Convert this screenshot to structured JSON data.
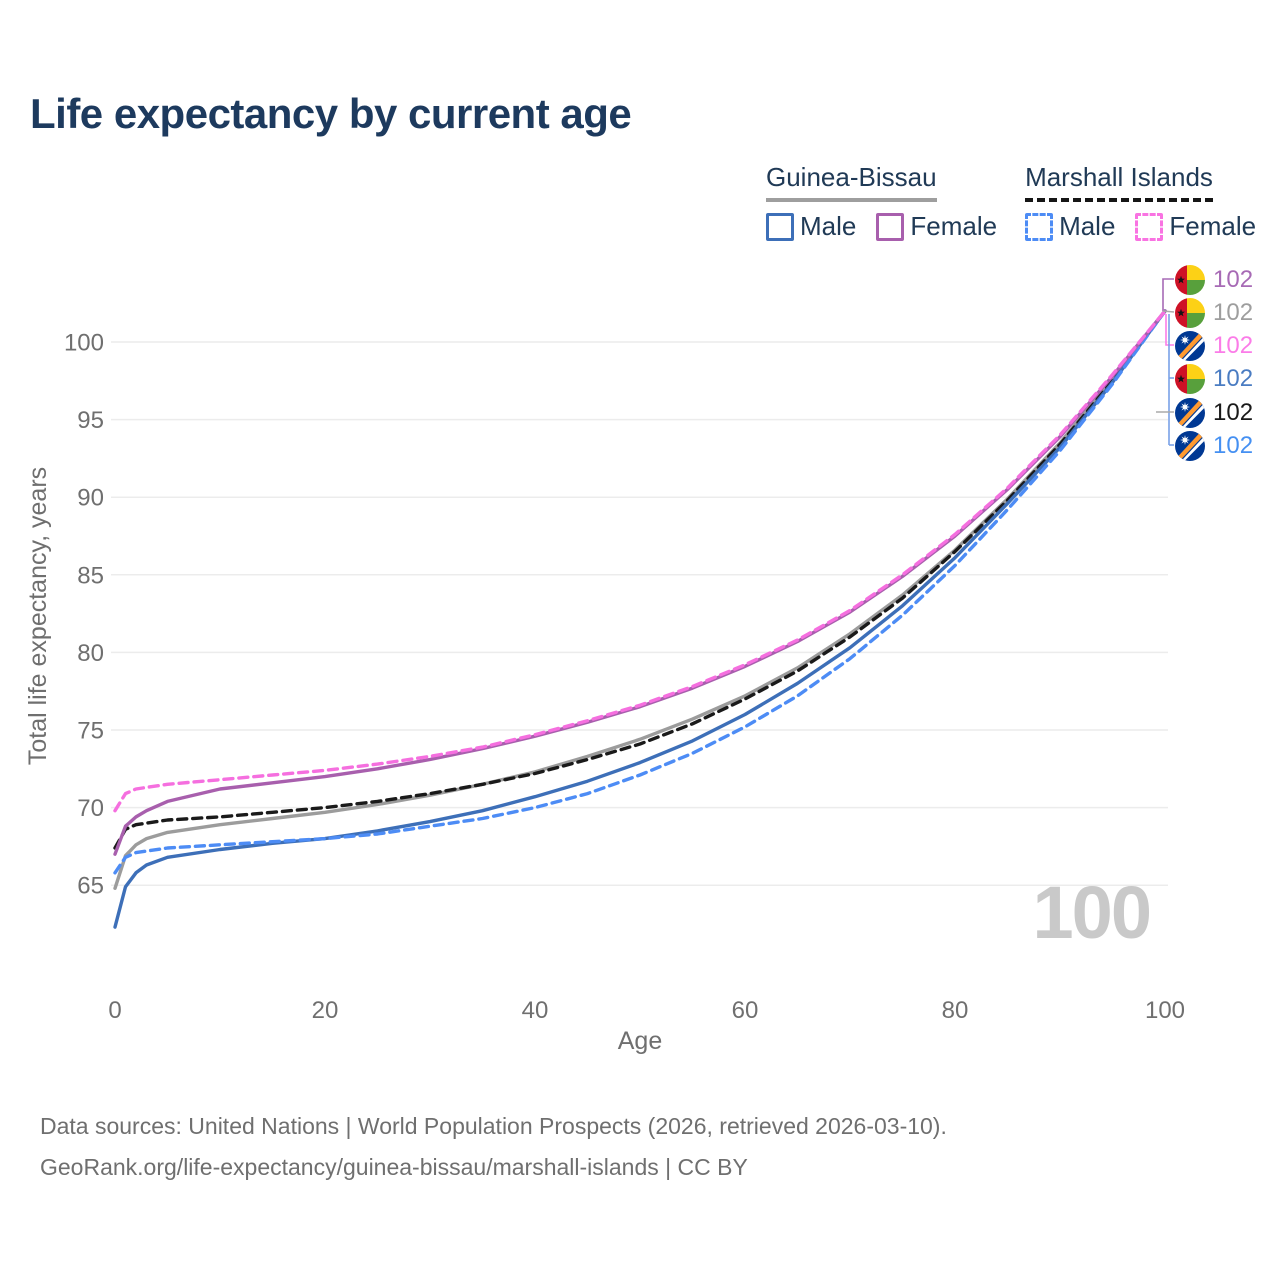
{
  "title": "Life expectancy by current age",
  "legend": {
    "groups": [
      {
        "name": "Guinea-Bissau",
        "line_style": "solid",
        "underline_color": "#9e9e9e",
        "items": [
          {
            "label": "Male",
            "color": "#3d6fb8",
            "dashed": false
          },
          {
            "label": "Female",
            "color": "#a85fad",
            "dashed": false
          }
        ]
      },
      {
        "name": "Marshall Islands",
        "line_style": "dashed",
        "underline_color": "#161616",
        "items": [
          {
            "label": "Male",
            "color": "#4d8cf5",
            "dashed": true
          },
          {
            "label": "Female",
            "color": "#f973e2",
            "dashed": true
          }
        ]
      }
    ]
  },
  "watermark_age": "100",
  "footer": {
    "line1": "Data sources: United Nations | World Population Prospects (2026, retrieved 2026-03-10).",
    "line2": "GeoRank.org/life-expectancy/guinea-bissau/marshall-islands | CC BY"
  },
  "end_labels": [
    {
      "flag": "guinea-bissau",
      "series": "Guinea-Bissau Female",
      "value": "102",
      "color": "#a76ab5"
    },
    {
      "flag": "guinea-bissau",
      "series": "Guinea-Bissau Total",
      "value": "102",
      "color": "#9e9e9e"
    },
    {
      "flag": "marshall-islands",
      "series": "Marshall Islands Female",
      "value": "102",
      "color": "#fb7ce8"
    },
    {
      "flag": "guinea-bissau",
      "series": "Guinea-Bissau Male",
      "value": "102",
      "color": "#4a7cc2"
    },
    {
      "flag": "marshall-islands",
      "series": "Marshall Islands Total",
      "value": "102",
      "color": "#1a1a1a"
    },
    {
      "flag": "marshall-islands",
      "series": "Marshall Islands Male",
      "value": "102",
      "color": "#4590f2"
    }
  ],
  "chart_data": {
    "type": "line",
    "title": "Life expectancy by current age",
    "xlabel": "Age",
    "ylabel": "Total life expectancy, years",
    "xticks": [
      0,
      20,
      40,
      60,
      80,
      100
    ],
    "yticks": [
      65,
      70,
      75,
      80,
      85,
      90,
      95,
      100
    ],
    "xlim": [
      0,
      100
    ],
    "ylim": [
      61.5,
      103
    ],
    "grid": "horizontal",
    "legend_position": "top-right",
    "series": [
      {
        "name": "Guinea-Bissau Total",
        "color": "#9c9c9c",
        "dashed": false,
        "points": [
          [
            0,
            64.8
          ],
          [
            1,
            66.9
          ],
          [
            2,
            67.6
          ],
          [
            3,
            68.0
          ],
          [
            5,
            68.4
          ],
          [
            10,
            68.9
          ],
          [
            15,
            69.3
          ],
          [
            20,
            69.7
          ],
          [
            25,
            70.2
          ],
          [
            30,
            70.8
          ],
          [
            35,
            71.5
          ],
          [
            40,
            72.3
          ],
          [
            45,
            73.3
          ],
          [
            50,
            74.4
          ],
          [
            55,
            75.7
          ],
          [
            60,
            77.2
          ],
          [
            65,
            79.0
          ],
          [
            70,
            81.2
          ],
          [
            75,
            83.7
          ],
          [
            80,
            86.6
          ],
          [
            85,
            89.9
          ],
          [
            90,
            93.5
          ],
          [
            95,
            97.6
          ],
          [
            100,
            102
          ]
        ]
      },
      {
        "name": "Marshall Islands Total",
        "color": "#1a1a1a",
        "dashed": true,
        "points": [
          [
            0,
            67.4
          ],
          [
            1,
            68.6
          ],
          [
            2,
            68.9
          ],
          [
            3,
            69.0
          ],
          [
            5,
            69.2
          ],
          [
            10,
            69.4
          ],
          [
            15,
            69.7
          ],
          [
            20,
            70.0
          ],
          [
            25,
            70.4
          ],
          [
            30,
            70.9
          ],
          [
            35,
            71.5
          ],
          [
            40,
            72.2
          ],
          [
            45,
            73.1
          ],
          [
            50,
            74.1
          ],
          [
            55,
            75.4
          ],
          [
            60,
            77.0
          ],
          [
            65,
            78.8
          ],
          [
            70,
            81.0
          ],
          [
            75,
            83.5
          ],
          [
            80,
            86.5
          ],
          [
            85,
            89.8
          ],
          [
            90,
            93.4
          ],
          [
            95,
            97.5
          ],
          [
            100,
            102
          ]
        ]
      },
      {
        "name": "Guinea-Bissau Male",
        "color": "#3d6fb8",
        "dashed": false,
        "points": [
          [
            0,
            62.3
          ],
          [
            1,
            64.9
          ],
          [
            2,
            65.8
          ],
          [
            3,
            66.3
          ],
          [
            5,
            66.8
          ],
          [
            10,
            67.3
          ],
          [
            15,
            67.7
          ],
          [
            20,
            68.0
          ],
          [
            25,
            68.5
          ],
          [
            30,
            69.1
          ],
          [
            35,
            69.8
          ],
          [
            40,
            70.7
          ],
          [
            45,
            71.7
          ],
          [
            50,
            72.9
          ],
          [
            55,
            74.3
          ],
          [
            60,
            76.0
          ],
          [
            65,
            78.0
          ],
          [
            70,
            80.3
          ],
          [
            75,
            83.0
          ],
          [
            80,
            86.1
          ],
          [
            85,
            89.6
          ],
          [
            90,
            93.2
          ],
          [
            95,
            97.4
          ],
          [
            100,
            102
          ]
        ]
      },
      {
        "name": "Marshall Islands Male",
        "color": "#4d8cf5",
        "dashed": true,
        "points": [
          [
            0,
            65.8
          ],
          [
            1,
            66.8
          ],
          [
            2,
            67.1
          ],
          [
            3,
            67.2
          ],
          [
            5,
            67.4
          ],
          [
            10,
            67.6
          ],
          [
            15,
            67.8
          ],
          [
            20,
            68.0
          ],
          [
            25,
            68.3
          ],
          [
            30,
            68.8
          ],
          [
            35,
            69.3
          ],
          [
            40,
            70.0
          ],
          [
            45,
            70.9
          ],
          [
            50,
            72.1
          ],
          [
            55,
            73.5
          ],
          [
            60,
            75.2
          ],
          [
            65,
            77.2
          ],
          [
            70,
            79.6
          ],
          [
            75,
            82.4
          ],
          [
            80,
            85.6
          ],
          [
            85,
            89.2
          ],
          [
            90,
            93.0
          ],
          [
            95,
            97.3
          ],
          [
            100,
            102
          ]
        ]
      },
      {
        "name": "Guinea-Bissau Female",
        "color": "#a85fad",
        "dashed": false,
        "points": [
          [
            0,
            67.0
          ],
          [
            1,
            68.8
          ],
          [
            2,
            69.4
          ],
          [
            3,
            69.8
          ],
          [
            5,
            70.4
          ],
          [
            10,
            71.2
          ],
          [
            15,
            71.6
          ],
          [
            20,
            72.0
          ],
          [
            25,
            72.5
          ],
          [
            30,
            73.1
          ],
          [
            35,
            73.8
          ],
          [
            40,
            74.6
          ],
          [
            45,
            75.5
          ],
          [
            50,
            76.5
          ],
          [
            55,
            77.7
          ],
          [
            60,
            79.1
          ],
          [
            65,
            80.7
          ],
          [
            70,
            82.6
          ],
          [
            75,
            84.9
          ],
          [
            80,
            87.5
          ],
          [
            85,
            90.5
          ],
          [
            90,
            93.9
          ],
          [
            95,
            97.8
          ],
          [
            100,
            102
          ]
        ]
      },
      {
        "name": "Marshall Islands Female",
        "color": "#f56fdf",
        "dashed": true,
        "points": [
          [
            0,
            69.8
          ],
          [
            1,
            70.9
          ],
          [
            2,
            71.2
          ],
          [
            3,
            71.3
          ],
          [
            5,
            71.5
          ],
          [
            10,
            71.8
          ],
          [
            15,
            72.1
          ],
          [
            20,
            72.4
          ],
          [
            25,
            72.8
          ],
          [
            30,
            73.3
          ],
          [
            35,
            73.9
          ],
          [
            40,
            74.7
          ],
          [
            45,
            75.6
          ],
          [
            50,
            76.6
          ],
          [
            55,
            77.8
          ],
          [
            60,
            79.2
          ],
          [
            65,
            80.8
          ],
          [
            70,
            82.7
          ],
          [
            75,
            85.0
          ],
          [
            80,
            87.6
          ],
          [
            85,
            90.6
          ],
          [
            90,
            94.0
          ],
          [
            95,
            97.9
          ],
          [
            100,
            102
          ]
        ]
      }
    ]
  }
}
